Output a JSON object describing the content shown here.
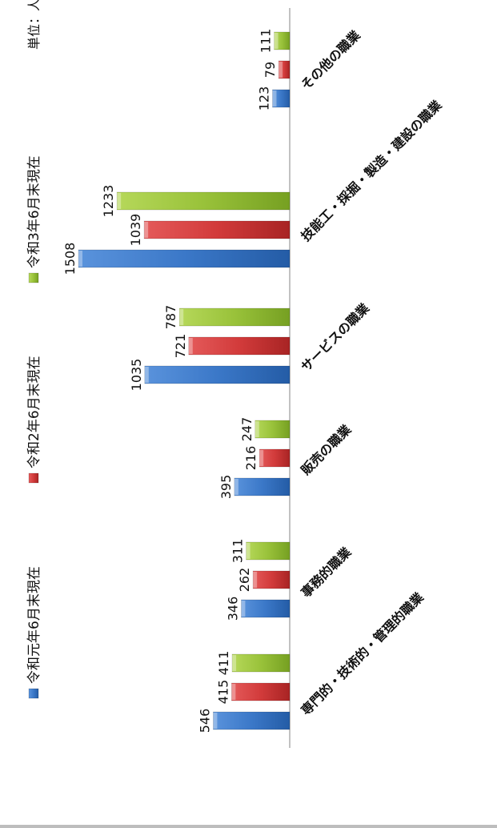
{
  "chart_data": {
    "type": "bar",
    "orientation": "rotated -90deg (bars grow leftward, categories read top-to-bottom along the right side)",
    "unit_label": "単位：人",
    "categories": [
      "専門的・技術的・管理的職業",
      "事務的職業",
      "販売の職業",
      "サービスの職業",
      "技能工・採掘・製造・建設の職業",
      "その他の職業"
    ],
    "series": [
      {
        "name": "令和元年6月末現在",
        "color": "#3b78c8",
        "values": [
          546,
          346,
          395,
          1035,
          1508,
          123
        ]
      },
      {
        "name": "令和2年6月末現在",
        "color": "#d23b3b",
        "values": [
          415,
          262,
          216,
          721,
          1039,
          79
        ]
      },
      {
        "name": "令和3年6月末現在",
        "color": "#99c23a",
        "values": [
          411,
          311,
          247,
          787,
          1233,
          111
        ]
      }
    ],
    "value_axis": {
      "min": 0,
      "max": 1600
    },
    "grid": false,
    "legend_position": "left"
  }
}
